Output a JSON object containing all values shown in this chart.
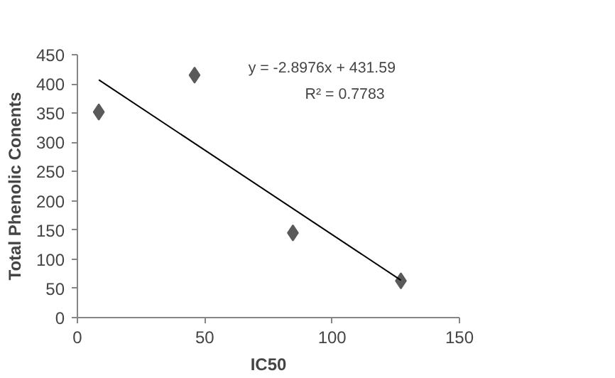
{
  "chart_data": {
    "type": "scatter",
    "xlabel": "IC50",
    "ylabel": "Total Phenolic Conents",
    "xlim": [
      0,
      150
    ],
    "xticks": [
      0,
      50,
      100,
      150
    ],
    "ylim": [
      0,
      450
    ],
    "yticks": [
      0,
      50,
      100,
      150,
      200,
      250,
      300,
      350,
      400,
      450
    ],
    "grid": false,
    "series": [
      {
        "color": "#5a5a5a",
        "marker": "diamond",
        "x": [
          8.4,
          46,
          84.6,
          127
        ],
        "values": [
          352,
          415,
          145,
          63
        ]
      },
      {
        "type": "line",
        "color": "#000000",
        "x": [
          8.4,
          127
        ],
        "values": [
          407,
          64
        ]
      }
    ],
    "annotations": [
      "y = -2.8976x + 431.59",
      "R² = 0.7783"
    ]
  }
}
